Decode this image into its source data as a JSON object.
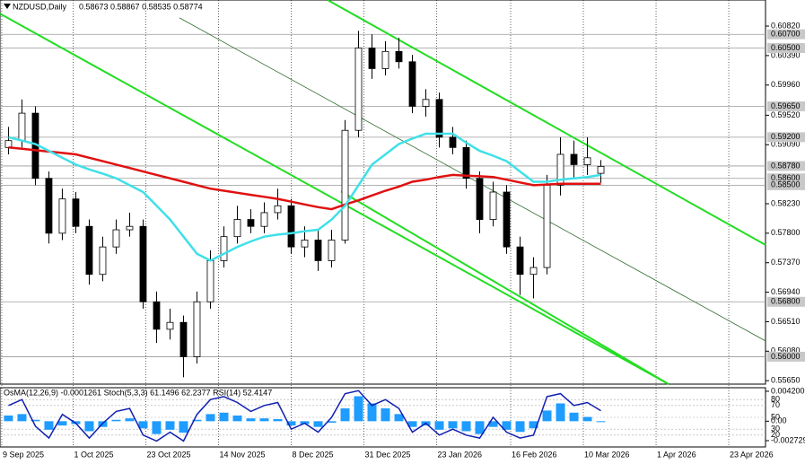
{
  "chart_data": [
    {
      "type": "candlestick",
      "title": "NZDUSD,Daily",
      "ohlc_label": "0.58673 0.58867 0.58535 0.58774",
      "open": [
        0.5905,
        0.5915,
        0.5955,
        0.586,
        0.578,
        0.583,
        0.579,
        0.572,
        0.576,
        0.5785,
        0.579,
        0.568,
        0.564,
        0.565,
        0.56,
        0.568,
        0.574,
        0.5775,
        0.58,
        0.579,
        0.581,
        0.582,
        0.576,
        0.577,
        0.574,
        0.577,
        0.593,
        0.605,
        0.602,
        0.6045,
        0.603,
        0.5965,
        0.5975,
        0.592,
        0.5905,
        0.586,
        0.58,
        0.584,
        0.576,
        0.572,
        0.573,
        0.585,
        0.5895,
        0.588,
        0.58673
      ],
      "high": [
        0.5935,
        0.5975,
        0.5965,
        0.587,
        0.5845,
        0.584,
        0.58,
        0.5775,
        0.58,
        0.581,
        0.58,
        0.5695,
        0.567,
        0.566,
        0.5695,
        0.5755,
        0.579,
        0.582,
        0.5815,
        0.5825,
        0.5845,
        0.583,
        0.579,
        0.5785,
        0.5785,
        0.5945,
        0.6075,
        0.607,
        0.606,
        0.6065,
        0.604,
        0.599,
        0.5985,
        0.5935,
        0.5915,
        0.587,
        0.5855,
        0.585,
        0.5775,
        0.5745,
        0.5865,
        0.592,
        0.5915,
        0.592,
        0.58867
      ],
      "low": [
        0.5895,
        0.5905,
        0.585,
        0.5765,
        0.577,
        0.578,
        0.5705,
        0.571,
        0.575,
        0.5775,
        0.567,
        0.562,
        0.5625,
        0.557,
        0.559,
        0.567,
        0.573,
        0.5765,
        0.578,
        0.578,
        0.58,
        0.575,
        0.5745,
        0.5725,
        0.573,
        0.5765,
        0.592,
        0.6005,
        0.601,
        0.602,
        0.5955,
        0.595,
        0.5905,
        0.5895,
        0.5845,
        0.578,
        0.579,
        0.575,
        0.569,
        0.5685,
        0.572,
        0.5835,
        0.586,
        0.5865,
        0.58535
      ],
      "close": [
        0.5915,
        0.5955,
        0.586,
        0.578,
        0.583,
        0.579,
        0.572,
        0.576,
        0.5785,
        0.579,
        0.568,
        0.564,
        0.565,
        0.56,
        0.568,
        0.574,
        0.5775,
        0.58,
        0.579,
        0.581,
        0.582,
        0.576,
        0.577,
        0.574,
        0.577,
        0.593,
        0.605,
        0.602,
        0.6045,
        0.603,
        0.5965,
        0.5975,
        0.592,
        0.5905,
        0.586,
        0.58,
        0.584,
        0.576,
        0.572,
        0.573,
        0.585,
        0.5895,
        0.588,
        0.589,
        0.58774
      ],
      "lines": [
        {
          "color": "#e01010",
          "values": [
            0.5905,
            0.5903,
            0.5901,
            0.5899,
            0.5897,
            0.5895,
            0.589,
            0.5885,
            0.588,
            0.5875,
            0.587,
            0.5865,
            0.586,
            0.5855,
            0.585,
            0.5845,
            0.5842,
            0.5839,
            0.5836,
            0.5833,
            0.583,
            0.5826,
            0.5822,
            0.5818,
            0.5815,
            0.5822,
            0.5828,
            0.5835,
            0.5842,
            0.5848,
            0.5855,
            0.5858,
            0.5862,
            0.5865,
            0.5864,
            0.5863,
            0.5862,
            0.5858,
            0.5854,
            0.585,
            0.5851,
            0.5852,
            0.5852,
            0.5852,
            0.5852
          ]
        },
        {
          "color": "#40e0e8",
          "values": [
            0.592,
            0.5915,
            0.591,
            0.59,
            0.589,
            0.588,
            0.5873,
            0.5867,
            0.586,
            0.585,
            0.584,
            0.582,
            0.58,
            0.5775,
            0.575,
            0.574,
            0.575,
            0.576,
            0.5768,
            0.5775,
            0.5778,
            0.578,
            0.5783,
            0.5785,
            0.58,
            0.582,
            0.585,
            0.588,
            0.5895,
            0.591,
            0.5918,
            0.5925,
            0.5925,
            0.5925,
            0.5912,
            0.59,
            0.5893,
            0.5885,
            0.587,
            0.5855,
            0.5855,
            0.5858,
            0.586,
            0.5862,
            0.5865
          ]
        }
      ],
      "trendlines": [
        {
          "color": "#22dd22",
          "x": [
            -0.63,
            49.03
          ],
          "y": [
            0.61,
            0.556
          ]
        },
        {
          "color": "#22dd22",
          "x": [
            23.7,
            56.23
          ],
          "y": [
            0.612,
            0.5763
          ]
        },
        {
          "color": "#22dd22",
          "x": [
            24.7,
            49.03
          ],
          "y": [
            0.5841,
            0.556
          ]
        },
        {
          "color": "#2e6b2e",
          "x": [
            12.7,
            56.23
          ],
          "y": [
            0.6094,
            0.5623
          ]
        }
      ],
      "xlim": [
        -0.63,
        56.23
      ],
      "ylim": [
        0.556,
        0.612
      ],
      "grid": true,
      "xticks": [
        {
          "value": -0.5,
          "label": "9 Sep 2025"
        },
        {
          "value": 4.8,
          "label": "1 Oct 2025"
        },
        {
          "value": 10.2,
          "label": "23 Oct 2025"
        },
        {
          "value": 15.6,
          "label": "14 Nov 2025"
        },
        {
          "value": 21,
          "label": "8 Dec 2025"
        },
        {
          "value": 26.4,
          "label": "31 Dec 2025"
        },
        {
          "value": 31.8,
          "label": "23 Jan 2026"
        },
        {
          "value": 37.3,
          "label": "16 Feb 2026"
        },
        {
          "value": 42.7,
          "label": "10 Mar 2026"
        },
        {
          "value": 48.1,
          "label": "1 Apr 2026"
        },
        {
          "value": 53.5,
          "label": "23 Apr 2026"
        }
      ],
      "yticks": [
        {
          "value": 0.6082,
          "label": "0.60820"
        },
        {
          "value": 0.6039,
          "label": "0.60390"
        },
        {
          "value": 0.5996,
          "label": "0.59960"
        },
        {
          "value": 0.5952,
          "label": "0.59520"
        },
        {
          "value": 0.5909,
          "label": "0.59090"
        },
        {
          "value": 0.5823,
          "label": "0.58230"
        },
        {
          "value": 0.578,
          "label": "0.57800"
        },
        {
          "value": 0.5737,
          "label": "0.57370"
        },
        {
          "value": 0.5694,
          "label": "0.56940"
        },
        {
          "value": 0.5651,
          "label": "0.56510"
        },
        {
          "value": 0.5608,
          "label": "0.56080"
        },
        {
          "value": 0.5565,
          "label": "0.55650"
        }
      ],
      "levels": [
        {
          "value": 0.607,
          "label": "0.60700"
        },
        {
          "value": 0.605,
          "label": "0.60500"
        },
        {
          "value": 0.5965,
          "label": "0.59650"
        },
        {
          "value": 0.592,
          "label": "0.59200"
        },
        {
          "value": 0.5878,
          "label": "0.58780"
        },
        {
          "value": 0.586,
          "label": "0.58600"
        },
        {
          "value": 0.585,
          "label": "0.58500"
        },
        {
          "value": 0.568,
          "label": "0.56800"
        },
        {
          "value": 0.56,
          "label": "0.56000"
        }
      ]
    },
    {
      "type": "osma",
      "title": "OsMA(12,26,9) -0.0001261  Stoch(5,3,3) 61.1496 62.2377  RSI(14) 52.4147",
      "color": "#1e9cff",
      "values": [
        0.0008,
        0.001,
        0.0002,
        -0.0012,
        -0.0006,
        -0.0004,
        -0.0014,
        -0.0008,
        0.0002,
        0.0004,
        -0.001,
        -0.0018,
        -0.0012,
        -0.0016,
        0.0002,
        0.001,
        0.0012,
        0.0008,
        0.0004,
        0.0004,
        0.0003,
        -0.0006,
        -0.0004,
        -0.0008,
        -0.0002,
        0.0018,
        0.0035,
        0.0025,
        0.0018,
        0.001,
        -0.0008,
        -0.0006,
        -0.0012,
        -0.001,
        -0.0014,
        -0.0018,
        -0.0008,
        -0.0012,
        -0.0015,
        -0.001,
        0.0015,
        0.0025,
        0.0012,
        0.0006,
        -0.0001261
      ],
      "series": [
        {
          "color": "#1020b0",
          "axis": "y2",
          "values": [
            70,
            80,
            35,
            15,
            55,
            40,
            15,
            40,
            60,
            65,
            20,
            10,
            25,
            10,
            55,
            80,
            85,
            75,
            60,
            70,
            75,
            30,
            40,
            25,
            50,
            90,
            95,
            70,
            80,
            65,
            25,
            40,
            20,
            30,
            20,
            15,
            50,
            25,
            15,
            20,
            85,
            90,
            70,
            75,
            61.1496
          ]
        }
      ],
      "ylim": [
        -0.00361,
        0.0047
      ],
      "yticks": [
        {
          "value": 0.0042,
          "label": "0.004200"
        },
        {
          "value": 0,
          "label": "0.00"
        },
        -0.002729
      ],
      "y2lim": [
        0,
        100
      ],
      "y2ticks": [
        80,
        70,
        50,
        30,
        20
      ]
    }
  ]
}
